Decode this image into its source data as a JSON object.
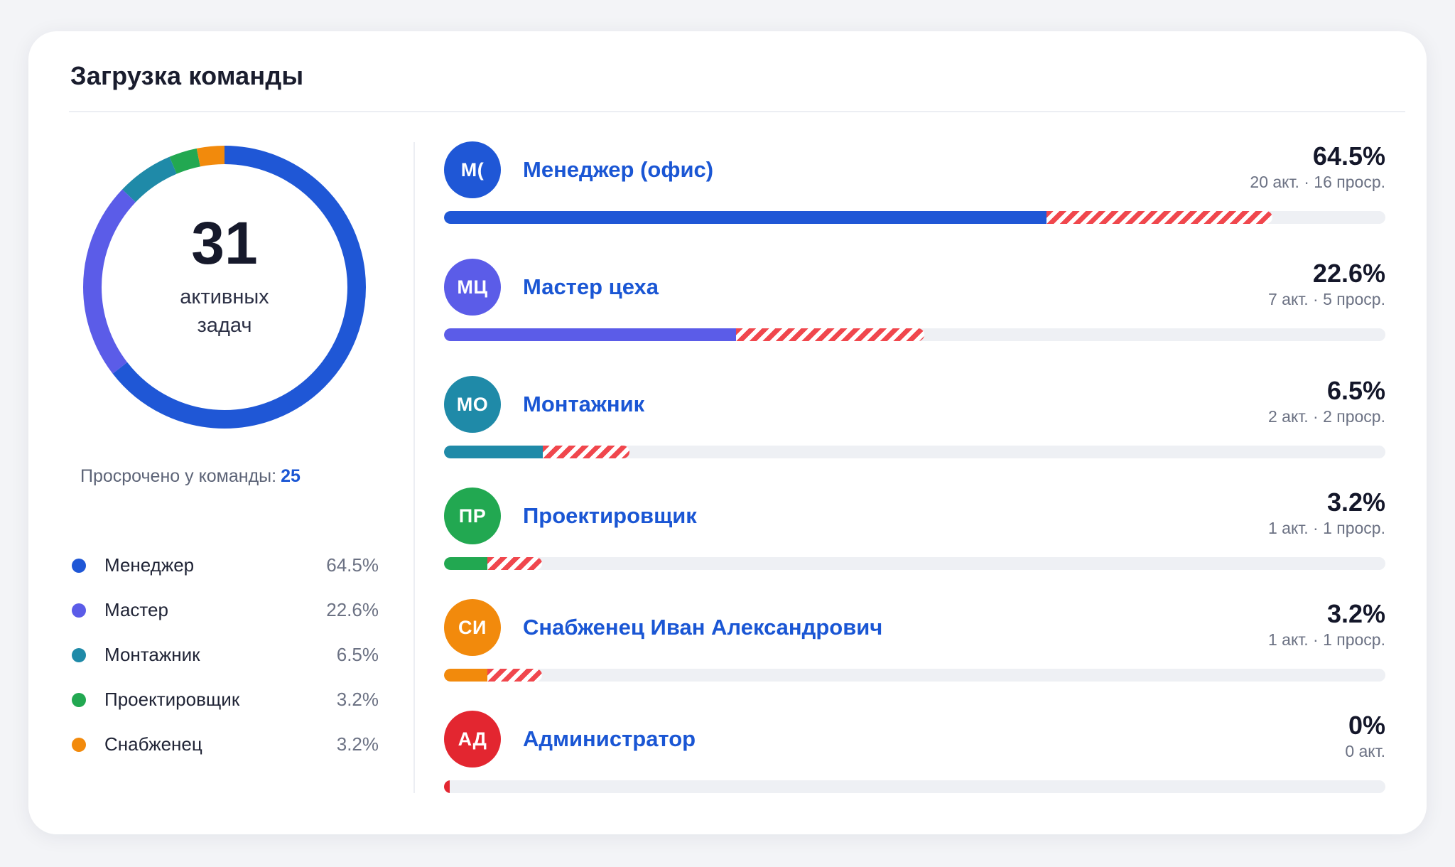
{
  "card": {
    "title": "Загрузка команды"
  },
  "summary": {
    "total_active": "31",
    "caption": "активных задач",
    "overdue_label": "Просрочено у команды:",
    "overdue_value": "25"
  },
  "legend": [
    {
      "label": "Менеджер",
      "value": "64.5%",
      "color": "#1f57d6"
    },
    {
      "label": "Мастер",
      "value": "22.6%",
      "color": "#5b5ce8"
    },
    {
      "label": "Монтажник",
      "value": "6.5%",
      "color": "#1f8aa8"
    },
    {
      "label": "Проектировщик",
      "value": "3.2%",
      "color": "#22a851"
    },
    {
      "label": "Снабженец",
      "value": "3.2%",
      "color": "#f28a0c"
    }
  ],
  "donut": {
    "segments": [
      {
        "share": 0.645,
        "color": "#1f57d6"
      },
      {
        "share": 0.226,
        "color": "#5b5ce8"
      },
      {
        "share": 0.065,
        "color": "#1f8aa8"
      },
      {
        "share": 0.032,
        "color": "#22a851"
      },
      {
        "share": 0.032,
        "color": "#f28a0c"
      }
    ]
  },
  "members": [
    {
      "initials": "М(",
      "name": "Менеджер (офис)",
      "percent": "64.5%",
      "stats": "20 акт. · 16 проср.",
      "color": "#1f57d6",
      "active_share": 0.64,
      "overdue_share": 0.24
    },
    {
      "initials": "МЦ",
      "name": "Мастер цеха",
      "percent": "22.6%",
      "stats": "7 акт. · 5 проср.",
      "color": "#5b5ce8",
      "active_share": 0.31,
      "overdue_share": 0.2
    },
    {
      "initials": "МО",
      "name": "Монтажник",
      "percent": "6.5%",
      "stats": "2 акт. · 2 проср.",
      "color": "#1f8aa8",
      "active_share": 0.105,
      "overdue_share": 0.092
    },
    {
      "initials": "ПР",
      "name": "Проектировщик",
      "percent": "3.2%",
      "stats": "1 акт. · 1 проср.",
      "color": "#22a851",
      "active_share": 0.046,
      "overdue_share": 0.058
    },
    {
      "initials": "СИ",
      "name": "Снабженец Иван Александрович",
      "percent": "3.2%",
      "stats": "1 акт. · 1 проср.",
      "color": "#f28a0c",
      "active_share": 0.046,
      "overdue_share": 0.058
    },
    {
      "initials": "АД",
      "name": "Администратор",
      "percent": "0%",
      "stats": "0 акт.",
      "color": "#e32630",
      "active_share": 0,
      "overdue_share": 0
    }
  ]
}
